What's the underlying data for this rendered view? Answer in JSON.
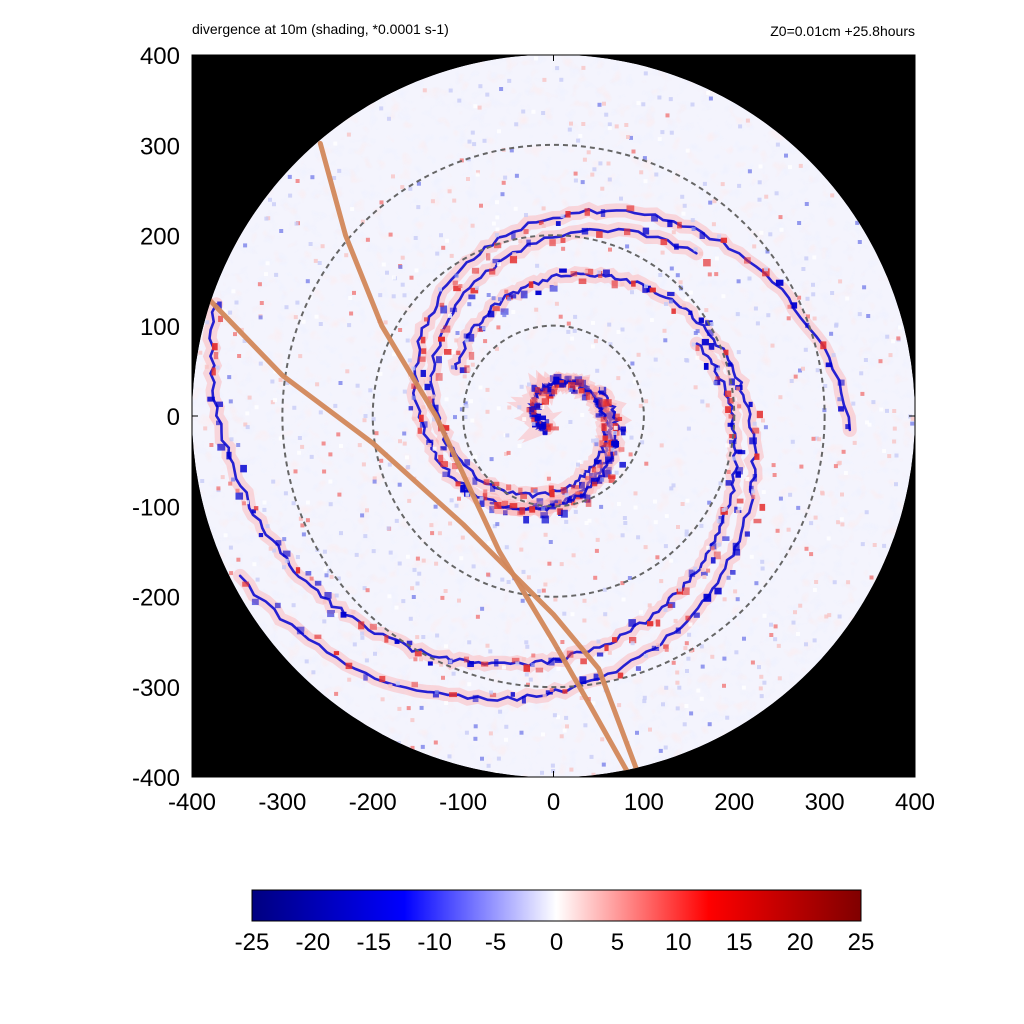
{
  "header": {
    "left_title": "divergence at 10m (shading, *0.0001 s-1)",
    "right_title": "Z0=0.01cm  +25.8hours"
  },
  "chart_data": {
    "type": "heatmap",
    "title": "divergence at 10m (shading, *0.0001 s-1)",
    "subtitle": "Z0=0.01cm  +25.8hours",
    "xlim": [
      -400,
      400
    ],
    "ylim": [
      -400,
      400
    ],
    "x_ticks": [
      -400,
      -300,
      -200,
      -100,
      0,
      100,
      200,
      300,
      400
    ],
    "y_ticks": [
      -400,
      -300,
      -200,
      -100,
      0,
      100,
      200,
      300,
      400
    ],
    "x_tick_labels": [
      "-400",
      "-300",
      "-200",
      "-100",
      "0",
      "100",
      "200",
      "300",
      "400"
    ],
    "y_tick_labels": [
      "400",
      "300",
      "200",
      "100",
      "0",
      "-100",
      "-200",
      "-300",
      "-400"
    ],
    "domain_radius": 400,
    "outside_domain_color": "#000000",
    "dashed_circles_radii": [
      100,
      200,
      300
    ],
    "colorbar": {
      "min": -25,
      "max": 25,
      "ticks": [
        -25,
        -20,
        -15,
        -10,
        -5,
        0,
        5,
        10,
        15,
        20,
        25
      ],
      "tick_labels": [
        "-25",
        "-20",
        "-15",
        "-10",
        "-5",
        "0",
        "5",
        "10",
        "15",
        "20",
        "25"
      ],
      "colors": [
        "#000080",
        "#0000ff",
        "#ffffff",
        "#ff0000",
        "#800000"
      ]
    },
    "track_lines": [
      {
        "color": "#d2875a",
        "points": [
          [
            -380,
            128
          ],
          [
            -300,
            45
          ],
          [
            -200,
            -30
          ],
          [
            -100,
            -120
          ],
          [
            0,
            -220
          ],
          [
            50,
            -280
          ],
          [
            95,
            -400
          ]
        ]
      },
      {
        "color": "#d2875a",
        "points": [
          [
            -258,
            302
          ],
          [
            -230,
            200
          ],
          [
            -190,
            100
          ],
          [
            -130,
            0
          ],
          [
            -60,
            -150
          ],
          [
            0,
            -250
          ],
          [
            40,
            -320
          ],
          [
            85,
            -400
          ]
        ]
      }
    ],
    "spiral_bands": {
      "negative_color": "#0000d0",
      "positive_color": "#e43030"
    }
  }
}
